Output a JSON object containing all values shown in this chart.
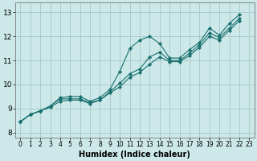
{
  "title": "",
  "xlabel": "Humidex (Indice chaleur)",
  "ylabel": "",
  "bg_color": "#cce8e8",
  "grid_color": "#aacccc",
  "line_color": "#1a7070",
  "marker_color": "#1a7070",
  "xlim": [
    -0.5,
    23.5
  ],
  "ylim": [
    7.8,
    13.4
  ],
  "yticks": [
    8,
    9,
    10,
    11,
    12,
    13
  ],
  "xticks": [
    0,
    1,
    2,
    3,
    4,
    5,
    6,
    7,
    8,
    9,
    10,
    11,
    12,
    13,
    14,
    15,
    16,
    17,
    18,
    19,
    20,
    21,
    22,
    23
  ],
  "series": [
    {
      "x": [
        0,
        1,
        2,
        3,
        4,
        5,
        6,
        7,
        8,
        9,
        10,
        11,
        12,
        13,
        14,
        15,
        16,
        17,
        18,
        19,
        20,
        21,
        22
      ],
      "y": [
        8.45,
        8.75,
        8.9,
        9.1,
        9.45,
        9.5,
        9.5,
        9.3,
        9.45,
        9.8,
        10.55,
        11.5,
        11.85,
        12.0,
        11.7,
        11.1,
        11.1,
        11.45,
        11.75,
        12.35,
        12.05,
        12.55,
        12.9
      ]
    },
    {
      "x": [
        0,
        1,
        2,
        3,
        4,
        5,
        6,
        7,
        8,
        9,
        10,
        11,
        12,
        13,
        14,
        15,
        16,
        17,
        18,
        19,
        20,
        21,
        22
      ],
      "y": [
        8.45,
        8.75,
        8.9,
        9.1,
        9.4,
        9.4,
        9.4,
        9.25,
        9.35,
        9.7,
        10.05,
        10.45,
        10.65,
        11.15,
        11.35,
        11.0,
        11.0,
        11.3,
        11.65,
        12.15,
        11.95,
        12.35,
        12.75
      ]
    },
    {
      "x": [
        0,
        1,
        2,
        3,
        4,
        5,
        6,
        7,
        8,
        9,
        10,
        11,
        12,
        13,
        14,
        15,
        16,
        17,
        18,
        19,
        20,
        21,
        22
      ],
      "y": [
        8.45,
        8.75,
        8.9,
        9.05,
        9.3,
        9.35,
        9.35,
        9.2,
        9.35,
        9.65,
        9.9,
        10.3,
        10.5,
        10.85,
        11.15,
        10.95,
        10.95,
        11.2,
        11.55,
        12.0,
        11.85,
        12.25,
        12.65
      ]
    }
  ]
}
